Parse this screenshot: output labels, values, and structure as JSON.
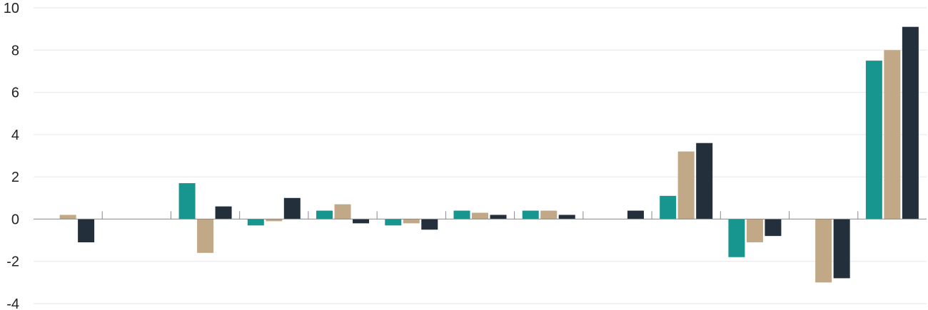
{
  "colors": {
    "series1": "#17968f",
    "series2": "#c1a886",
    "series3": "#232f3b"
  },
  "chart_data": {
    "type": "bar",
    "title": "",
    "xlabel": "",
    "ylabel": "",
    "categories": [
      "",
      "",
      "",
      "",
      "",
      "",
      "",
      "",
      "",
      "",
      "",
      "",
      ""
    ],
    "ylim": [
      -4,
      10
    ],
    "yticks": [
      "10",
      "8",
      "6",
      "4",
      "2",
      "0",
      "-2",
      "-4"
    ],
    "grid": true,
    "legend": "none",
    "series": [
      {
        "color": "#17968f",
        "values": [
          0,
          0,
          1.7,
          -0.3,
          0.4,
          -0.3,
          0.4,
          0.4,
          0,
          1.1,
          -1.8,
          0,
          7.5
        ]
      },
      {
        "color": "#c1a886",
        "values": [
          0.2,
          0,
          -1.6,
          -0.1,
          0.7,
          -0.2,
          0.3,
          0.4,
          0,
          3.2,
          -1.1,
          -3.0,
          8.0
        ]
      },
      {
        "color": "#232f3b",
        "values": [
          -1.1,
          0,
          0.6,
          1.0,
          -0.2,
          -0.5,
          0.2,
          0.2,
          0.4,
          3.6,
          -0.8,
          -2.8,
          9.1
        ]
      }
    ]
  }
}
